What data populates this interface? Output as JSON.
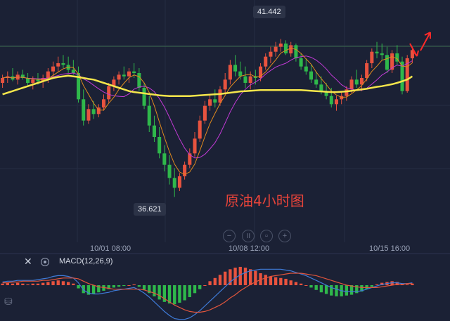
{
  "annotation": "原油4小时图",
  "price_tags": {
    "high": "41.442",
    "low": "36.621"
  },
  "x_axis_labels": [
    "10/01 08:00",
    "10/08 12:00",
    "10/15 16:00"
  ],
  "macd_indicator_label": "MACD(12,26,9)",
  "colors": {
    "background": "#1b2135",
    "up": "#e8533f",
    "down": "#2fb84b",
    "ma_long": "#f5e64b",
    "ma_fast": "#e08a1e",
    "ma_mid": "#c23ad6",
    "macd_dif": "#3f7bd8",
    "macd_dea": "#e0553c",
    "arrow": "#ff2a2a"
  },
  "chart_data": {
    "type": "candlestick",
    "ylim": [
      36.2,
      42.2
    ],
    "candles": [
      [
        40.1,
        40.35,
        39.95,
        40.25
      ],
      [
        40.25,
        40.45,
        40.1,
        40.3
      ],
      [
        40.3,
        40.55,
        40.15,
        40.2
      ],
      [
        40.2,
        40.45,
        40.05,
        40.35
      ],
      [
        40.35,
        40.5,
        40.2,
        40.25
      ],
      [
        40.25,
        40.4,
        40.0,
        40.1
      ],
      [
        40.1,
        40.3,
        39.9,
        40.2
      ],
      [
        40.2,
        40.4,
        40.05,
        40.15
      ],
      [
        40.15,
        40.35,
        39.95,
        40.25
      ],
      [
        40.25,
        40.55,
        40.1,
        40.45
      ],
      [
        40.45,
        40.75,
        40.3,
        40.6
      ],
      [
        40.6,
        40.9,
        40.45,
        40.7
      ],
      [
        40.7,
        40.95,
        40.55,
        40.65
      ],
      [
        40.65,
        40.9,
        40.4,
        40.5
      ],
      [
        40.5,
        40.8,
        40.35,
        40.4
      ],
      [
        40.4,
        40.6,
        39.5,
        39.6
      ],
      [
        39.6,
        39.9,
        38.8,
        38.95
      ],
      [
        38.95,
        39.45,
        38.85,
        39.3
      ],
      [
        39.3,
        39.55,
        39.0,
        39.15
      ],
      [
        39.15,
        39.45,
        39.05,
        39.35
      ],
      [
        39.35,
        39.75,
        39.25,
        39.6
      ],
      [
        39.6,
        40.1,
        39.5,
        40.0
      ],
      [
        40.0,
        40.3,
        39.85,
        40.2
      ],
      [
        40.2,
        40.45,
        40.05,
        40.35
      ],
      [
        40.35,
        40.6,
        40.2,
        40.3
      ],
      [
        40.3,
        40.55,
        40.1,
        40.45
      ],
      [
        40.45,
        40.7,
        40.25,
        40.4
      ],
      [
        40.4,
        40.55,
        39.85,
        39.95
      ],
      [
        39.95,
        40.1,
        39.3,
        39.4
      ],
      [
        39.4,
        39.7,
        38.6,
        38.8
      ],
      [
        38.8,
        39.1,
        38.3,
        38.45
      ],
      [
        38.45,
        38.75,
        37.8,
        37.95
      ],
      [
        37.95,
        38.2,
        37.4,
        37.6
      ],
      [
        37.6,
        37.9,
        37.0,
        37.2
      ],
      [
        37.2,
        37.5,
        36.62,
        36.9
      ],
      [
        36.9,
        37.35,
        36.8,
        37.25
      ],
      [
        37.25,
        37.7,
        37.15,
        37.6
      ],
      [
        37.6,
        38.1,
        37.5,
        37.95
      ],
      [
        37.95,
        38.6,
        37.85,
        38.4
      ],
      [
        38.4,
        39.1,
        38.3,
        38.95
      ],
      [
        38.95,
        39.55,
        38.85,
        39.4
      ],
      [
        39.4,
        39.75,
        39.25,
        39.6
      ],
      [
        39.6,
        39.9,
        39.35,
        39.5
      ],
      [
        39.5,
        40.0,
        39.4,
        39.9
      ],
      [
        39.9,
        40.4,
        39.75,
        40.2
      ],
      [
        40.2,
        40.8,
        40.05,
        40.65
      ],
      [
        40.65,
        40.95,
        40.3,
        40.45
      ],
      [
        40.45,
        40.75,
        40.2,
        40.3
      ],
      [
        40.3,
        40.6,
        39.95,
        40.1
      ],
      [
        40.1,
        40.45,
        39.9,
        40.3
      ],
      [
        40.3,
        40.5,
        40.05,
        40.25
      ],
      [
        40.25,
        40.7,
        40.15,
        40.6
      ],
      [
        40.6,
        41.0,
        40.5,
        40.9
      ],
      [
        40.9,
        41.2,
        40.7,
        41.05
      ],
      [
        41.05,
        41.35,
        40.9,
        41.2
      ],
      [
        41.2,
        41.44,
        41.05,
        41.3
      ],
      [
        41.3,
        41.4,
        40.95,
        41.0
      ],
      [
        41.0,
        41.35,
        40.9,
        41.25
      ],
      [
        41.25,
        41.3,
        40.75,
        40.85
      ],
      [
        40.85,
        41.0,
        40.5,
        40.6
      ],
      [
        40.6,
        40.85,
        40.35,
        40.45
      ],
      [
        40.45,
        40.65,
        40.1,
        40.2
      ],
      [
        40.2,
        40.45,
        39.95,
        40.05
      ],
      [
        40.05,
        40.3,
        39.75,
        39.85
      ],
      [
        39.85,
        40.1,
        39.6,
        39.7
      ],
      [
        39.7,
        39.95,
        39.35,
        39.45
      ],
      [
        39.45,
        39.7,
        39.25,
        39.6
      ],
      [
        39.6,
        39.85,
        39.45,
        39.7
      ],
      [
        39.7,
        40.0,
        39.55,
        39.9
      ],
      [
        39.9,
        40.3,
        39.8,
        40.2
      ],
      [
        40.2,
        40.5,
        39.95,
        40.05
      ],
      [
        40.05,
        40.35,
        39.85,
        40.25
      ],
      [
        40.25,
        40.8,
        40.15,
        40.7
      ],
      [
        40.7,
        41.15,
        40.55,
        41.05
      ],
      [
        41.05,
        41.35,
        40.85,
        41.0
      ],
      [
        41.0,
        41.3,
        40.8,
        40.95
      ],
      [
        40.95,
        41.2,
        40.4,
        40.5
      ],
      [
        40.5,
        41.1,
        40.4,
        41.0
      ],
      [
        41.0,
        41.25,
        40.65,
        40.75
      ],
      [
        40.75,
        40.9,
        39.75,
        39.85
      ],
      [
        39.85,
        40.95,
        39.8,
        40.85
      ],
      [
        40.85,
        41.2,
        40.7,
        41.1
      ]
    ],
    "ma_long": [
      39.75,
      39.8,
      39.85,
      39.9,
      39.95,
      40.0,
      40.05,
      40.1,
      40.15,
      40.2,
      40.25,
      40.28,
      40.3,
      40.32,
      40.3,
      40.28,
      40.25,
      40.22,
      40.2,
      40.15,
      40.1,
      40.05,
      40.0,
      39.95,
      39.9,
      39.85,
      39.82,
      39.8,
      39.78,
      39.76,
      39.74,
      39.72,
      39.71,
      39.7,
      39.7,
      39.7,
      39.7,
      39.7,
      39.71,
      39.72,
      39.73,
      39.74,
      39.75,
      39.76,
      39.78,
      39.8,
      39.82,
      39.84,
      39.85,
      39.86,
      39.87,
      39.88,
      39.88,
      39.88,
      39.88,
      39.88,
      39.88,
      39.88,
      39.88,
      39.88,
      39.87,
      39.86,
      39.85,
      39.84,
      39.83,
      39.82,
      39.82,
      39.83,
      39.84,
      39.86,
      39.88,
      39.9,
      39.92,
      39.95,
      39.98,
      40.0,
      40.03,
      40.06,
      40.1,
      40.15,
      40.2,
      40.3
    ],
    "macd": {
      "hist": [
        0.02,
        0.03,
        0.02,
        0.03,
        0.02,
        0.01,
        0.02,
        0.02,
        0.03,
        0.04,
        0.05,
        0.06,
        0.05,
        0.04,
        0.02,
        -0.04,
        -0.1,
        -0.12,
        -0.11,
        -0.09,
        -0.07,
        -0.05,
        -0.03,
        -0.02,
        -0.01,
        0.0,
        0.01,
        -0.02,
        -0.06,
        -0.1,
        -0.14,
        -0.18,
        -0.21,
        -0.23,
        -0.24,
        -0.22,
        -0.19,
        -0.15,
        -0.1,
        -0.05,
        0.0,
        0.05,
        0.09,
        0.13,
        0.17,
        0.2,
        0.22,
        0.23,
        0.22,
        0.2,
        0.18,
        0.15,
        0.13,
        0.11,
        0.1,
        0.09,
        0.08,
        0.06,
        0.04,
        0.02,
        0.0,
        -0.03,
        -0.06,
        -0.09,
        -0.11,
        -0.13,
        -0.14,
        -0.14,
        -0.13,
        -0.12,
        -0.1,
        -0.08,
        -0.05,
        -0.02,
        0.01,
        0.03,
        0.04,
        0.05,
        0.04,
        0.02,
        0.01,
        0.02
      ],
      "dif": [
        0.04,
        0.05,
        0.05,
        0.06,
        0.06,
        0.06,
        0.06,
        0.07,
        0.08,
        0.09,
        0.11,
        0.12,
        0.12,
        0.11,
        0.09,
        0.03,
        -0.06,
        -0.1,
        -0.11,
        -0.11,
        -0.1,
        -0.09,
        -0.07,
        -0.06,
        -0.05,
        -0.04,
        -0.03,
        -0.06,
        -0.1,
        -0.15,
        -0.21,
        -0.27,
        -0.33,
        -0.38,
        -0.42,
        -0.43,
        -0.43,
        -0.41,
        -0.37,
        -0.32,
        -0.26,
        -0.2,
        -0.14,
        -0.08,
        -0.02,
        0.04,
        0.09,
        0.13,
        0.16,
        0.18,
        0.19,
        0.2,
        0.2,
        0.2,
        0.2,
        0.2,
        0.19,
        0.18,
        0.16,
        0.14,
        0.12,
        0.09,
        0.06,
        0.03,
        0.0,
        -0.03,
        -0.05,
        -0.07,
        -0.08,
        -0.08,
        -0.08,
        -0.07,
        -0.05,
        -0.03,
        -0.01,
        0.01,
        0.02,
        0.03,
        0.03,
        0.02,
        0.02,
        0.03
      ],
      "dea": [
        0.03,
        0.03,
        0.04,
        0.04,
        0.05,
        0.05,
        0.05,
        0.05,
        0.06,
        0.06,
        0.07,
        0.08,
        0.09,
        0.09,
        0.09,
        0.08,
        0.05,
        0.02,
        0.0,
        -0.02,
        -0.03,
        -0.04,
        -0.05,
        -0.05,
        -0.05,
        -0.05,
        -0.05,
        -0.05,
        -0.06,
        -0.08,
        -0.1,
        -0.13,
        -0.17,
        -0.21,
        -0.25,
        -0.28,
        -0.31,
        -0.33,
        -0.34,
        -0.34,
        -0.33,
        -0.31,
        -0.28,
        -0.25,
        -0.21,
        -0.16,
        -0.12,
        -0.07,
        -0.03,
        0.01,
        0.04,
        0.07,
        0.09,
        0.11,
        0.12,
        0.13,
        0.14,
        0.15,
        0.15,
        0.15,
        0.14,
        0.13,
        0.12,
        0.1,
        0.08,
        0.06,
        0.04,
        0.02,
        0.0,
        -0.01,
        -0.02,
        -0.03,
        -0.03,
        -0.03,
        -0.03,
        -0.02,
        -0.01,
        0.0,
        0.01,
        0.01,
        0.02,
        0.02
      ]
    }
  }
}
